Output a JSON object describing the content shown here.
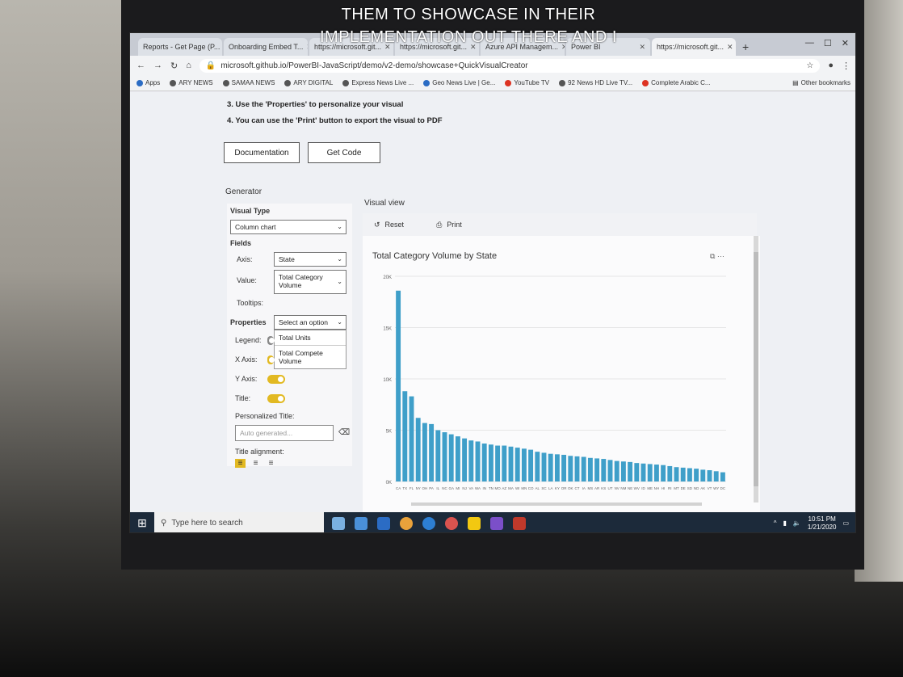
{
  "caption": [
    "THEM TO SHOWCASE IN THEIR",
    "IMPLEMENTATION OUT THERE AND I"
  ],
  "browser": {
    "tabs": [
      {
        "label": "Reports - Get Page (P...",
        "active": false
      },
      {
        "label": "Onboarding Embed T...",
        "active": false
      },
      {
        "label": "https://microsoft.git...",
        "active": false
      },
      {
        "label": "https://microsoft.git...",
        "active": false
      },
      {
        "label": "Azure API Managem...",
        "active": false
      },
      {
        "label": "Power BI",
        "active": false
      },
      {
        "label": "https://microsoft.git...",
        "active": true
      }
    ],
    "url": "microsoft.github.io/PowerBI-JavaScript/demo/v2-demo/showcase+QuickVisualCreator",
    "bookmarks": [
      "Apps",
      "ARY NEWS",
      "SAMAA NEWS",
      "ARY DIGITAL",
      "Express News Live ...",
      "Geo News Live | Ge...",
      "YouTube TV",
      "92 News HD Live TV...",
      "Complete Arabic C..."
    ],
    "other_bookmarks": "Other bookmarks"
  },
  "page": {
    "steps": [
      "3. Use the 'Properties' to personalize your visual",
      "4. You can use the 'Print' button to export the visual to PDF"
    ],
    "documentation_label": "Documentation",
    "get_code_label": "Get Code",
    "generator": {
      "title": "Generator",
      "visual_type_label": "Visual Type",
      "visual_type_value": "Column chart",
      "fields_label": "Fields",
      "axis_label": "Axis:",
      "axis_value": "State",
      "value_label": "Value:",
      "value_value": "Total Category Volume",
      "tooltips_label": "Tooltips:",
      "properties_label": "Properties",
      "properties_placeholder": "Select an option",
      "dropdown_options": [
        "Total Units",
        "Total Compete Volume"
      ],
      "legend_label": "Legend:",
      "xaxis_label": "X Axis:",
      "yaxis_label": "Y Axis:",
      "title_label": "Title:",
      "personalized_title_label": "Personalized Title:",
      "personalized_title_placeholder": "Auto generated...",
      "title_alignment_label": "Title alignment:"
    },
    "visual_view": {
      "title": "Visual view",
      "reset_label": "Reset",
      "print_label": "Print"
    }
  },
  "taskbar": {
    "search_placeholder": "Type here to search",
    "time": "10:51 PM",
    "date": "1/21/2020"
  },
  "colors": {
    "bar": "#3f9fc9",
    "toggle": "#e2b922",
    "taskbar": "#1c2a3a"
  },
  "chart_data": {
    "type": "bar",
    "title": "Total Category Volume by State",
    "ylim": [
      0,
      20000
    ],
    "yticks": [
      "0K",
      "5K",
      "10K",
      "15K",
      "20K"
    ],
    "categories": [
      "CA",
      "TX",
      "FL",
      "NY",
      "OH",
      "PA",
      "IL",
      "NC",
      "GA",
      "MI",
      "NJ",
      "VA",
      "WA",
      "IN",
      "TN",
      "MO",
      "AZ",
      "MA",
      "WI",
      "MN",
      "CO",
      "AL",
      "SC",
      "LA",
      "KY",
      "OR",
      "OK",
      "CT",
      "IA",
      "MS",
      "AR",
      "KS",
      "UT",
      "NV",
      "NM",
      "NE",
      "WV",
      "ID",
      "ME",
      "NH",
      "HI",
      "RI",
      "MT",
      "DE",
      "SD",
      "ND",
      "AK",
      "VT",
      "WY",
      "DC"
    ],
    "values": [
      18600,
      8800,
      8300,
      6200,
      5700,
      5600,
      5000,
      4800,
      4600,
      4400,
      4200,
      4000,
      3900,
      3700,
      3600,
      3500,
      3500,
      3400,
      3300,
      3200,
      3100,
      2900,
      2800,
      2700,
      2650,
      2600,
      2500,
      2450,
      2400,
      2300,
      2250,
      2200,
      2100,
      2000,
      1950,
      1900,
      1800,
      1750,
      1700,
      1650,
      1600,
      1500,
      1400,
      1350,
      1300,
      1250,
      1150,
      1100,
      1000,
      900
    ]
  }
}
